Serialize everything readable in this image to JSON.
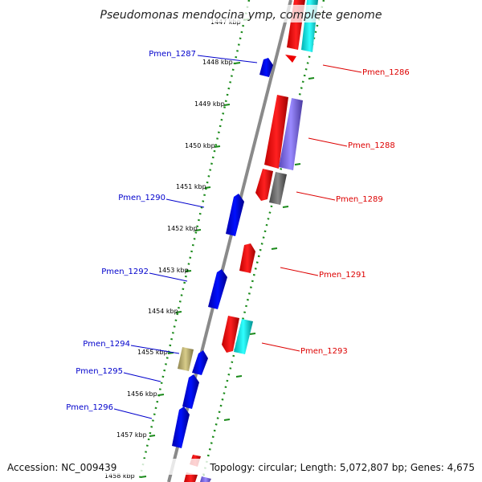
{
  "title": "Pseudomonas mendocina ymp, complete genome",
  "accession_text": "Accession: NC_009439",
  "topology_text": "Topology: circular; Length: 5,072,807 bp; Genes: 4,675",
  "colors": {
    "backbone": "#8a8a8a",
    "scale_ticks": "#1a8a1a",
    "forward_label": "#0000cc",
    "reverse_label": "#dd0000"
  },
  "scale": {
    "unit": "kbp",
    "labels": [
      "1447 kbp",
      "1448 kbp",
      "1449 kbp",
      "1450 kbp",
      "1451 kbp",
      "1452 kbp",
      "1453 kbp",
      "1454 kbp",
      "1455 kbp",
      "1456 kbp",
      "1457 kbp",
      "1458 kbp"
    ]
  },
  "genes_forward": [
    {
      "id": "Pmen_1287",
      "color": "#0000dd",
      "labeled": true
    },
    {
      "id": "Pmen_1290",
      "color": "#0000dd",
      "labeled": true
    },
    {
      "id": "Pmen_1292",
      "color": "#0000dd",
      "labeled": true
    },
    {
      "id": "Pmen_1294",
      "color": "#b5a96a",
      "labeled": true
    },
    {
      "id": "Pmen_1295",
      "color": "#0000dd",
      "labeled": true
    },
    {
      "id": "Pmen_1296",
      "color": "#0000dd",
      "labeled": true
    },
    {
      "id": "Pmen_1296b",
      "color": "#0000dd",
      "labeled": false
    }
  ],
  "genes_reverse": [
    {
      "id": "Pmen_1286",
      "color": "#ee0000",
      "labeled": true
    },
    {
      "id": "Pmen_1288",
      "color": "#ee0000",
      "labeled": true
    },
    {
      "id": "Pmen_1289",
      "color": "#ee0000",
      "labeled": true
    },
    {
      "id": "Pmen_1291",
      "color": "#ee0000",
      "labeled": true
    },
    {
      "id": "Pmen_1293",
      "color": "#ee0000",
      "labeled": true
    }
  ],
  "genes_reverse_outer": [
    {
      "id": "Pmen_1286b",
      "color": "#00d8d8"
    },
    {
      "id": "Pmen_1288b",
      "color": "#7a66dd"
    },
    {
      "id": "Pmen_1289b",
      "color": "#6f6f6f"
    },
    {
      "id": "Pmen_1293b",
      "color": "#00d8d8"
    }
  ]
}
